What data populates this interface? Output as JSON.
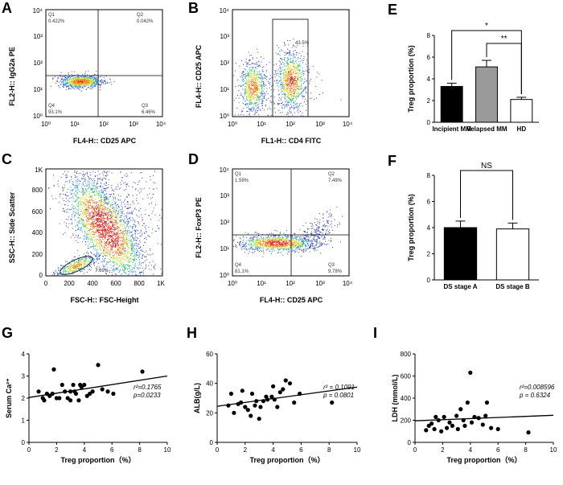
{
  "figure": {
    "panel_labels": [
      "A",
      "B",
      "C",
      "D",
      "E",
      "F",
      "G",
      "H",
      "I"
    ]
  },
  "flow": {
    "A": {
      "xlabel": "FL4-H:: CD25 APC",
      "ylabel": "FL2-H:: IgG2a PE",
      "ticks": [
        "10⁰",
        "10¹",
        "10²",
        "10³",
        "10⁴"
      ],
      "q1": "Q1",
      "q1v": "0.422%",
      "q2": "Q2",
      "q2v": "0.042%",
      "q3": "Q3",
      "q3v": "6.46%",
      "q4": "Q4",
      "q4v": "93.1%"
    },
    "B": {
      "xlabel": "FL1-H:: CD4 FITC",
      "ylabel": "FL4-H:: CD25 APC",
      "ticks": [
        "10⁰",
        "10¹",
        "10²",
        "10³",
        "10⁴"
      ],
      "gate": "43.5%"
    },
    "C": {
      "xlabel": "FSC-H:: FSC-Height",
      "ylabel": "SSC-H:: Side Scatter",
      "ticks": [
        "0",
        "200",
        "400",
        "600",
        "800",
        "1K"
      ],
      "gate": "7.69%"
    },
    "D": {
      "xlabel": "FL4-H:: CD25 APC",
      "ylabel": "FL2-H:: FoxP3 PE",
      "ticks": [
        "10⁰",
        "10¹",
        "10²",
        "10³",
        "10⁴"
      ],
      "q1": "Q1",
      "q1v": "1.59%",
      "q2": "Q2",
      "q2v": "7.49%",
      "q3": "Q3",
      "q3v": "9.78%",
      "q4": "Q4",
      "q4v": "81.1%"
    }
  },
  "chart_data": [
    {
      "id": "E",
      "type": "bar",
      "categories": [
        "Incipient MM",
        "Relapsed MM",
        "HD"
      ],
      "values": [
        3.3,
        5.1,
        2.1
      ],
      "errors": [
        0.3,
        0.6,
        0.2
      ],
      "colors": [
        "#000000",
        "#9a9a9a",
        "#ffffff"
      ],
      "ylabel": "Treg proportion (%)",
      "ylim": [
        0,
        8
      ],
      "yticks": [
        0,
        2,
        4,
        6,
        8
      ],
      "sig": [
        {
          "from": 0,
          "to": 2,
          "label": "*"
        },
        {
          "from": 1,
          "to": 2,
          "label": "**"
        }
      ]
    },
    {
      "id": "F",
      "type": "bar",
      "categories": [
        "DS stage A",
        "DS stage B"
      ],
      "values": [
        4.0,
        3.9
      ],
      "errors": [
        0.5,
        0.45
      ],
      "colors": [
        "#000000",
        "#ffffff"
      ],
      "ylabel": "Treg proportion (%)",
      "ylim": [
        0,
        8
      ],
      "yticks": [
        0,
        2,
        4,
        6,
        8
      ],
      "sig": [
        {
          "from": 0,
          "to": 1,
          "label": "NS"
        }
      ]
    },
    {
      "id": "G",
      "type": "scatter",
      "xlabel": "Treg proportion（%）",
      "ylabel": "Serum Ca²⁺",
      "xlim": [
        0,
        10
      ],
      "ylim": [
        0,
        4
      ],
      "xticks": [
        0,
        2,
        4,
        6,
        8,
        10
      ],
      "yticks": [
        0,
        1,
        2,
        3,
        4
      ],
      "r2": "r²=0.1765",
      "p": "p=0.0233",
      "fit": [
        [
          0,
          2.03
        ],
        [
          10,
          3.0
        ]
      ],
      "points": [
        [
          0.7,
          2.3
        ],
        [
          1.0,
          2.0
        ],
        [
          1.1,
          1.9
        ],
        [
          1.3,
          2.2
        ],
        [
          1.5,
          2.1
        ],
        [
          1.7,
          2.2
        ],
        [
          1.8,
          3.3
        ],
        [
          2.0,
          2.0
        ],
        [
          2.2,
          2.0
        ],
        [
          2.4,
          2.6
        ],
        [
          2.6,
          2.3
        ],
        [
          2.8,
          2.0
        ],
        [
          3.0,
          2.3
        ],
        [
          3.0,
          1.9
        ],
        [
          3.2,
          2.6
        ],
        [
          3.3,
          2.3
        ],
        [
          3.4,
          2.2
        ],
        [
          3.6,
          1.9
        ],
        [
          3.7,
          2.6
        ],
        [
          3.8,
          2.5
        ],
        [
          4.0,
          2.6
        ],
        [
          4.2,
          2.1
        ],
        [
          4.4,
          2.2
        ],
        [
          4.6,
          2.3
        ],
        [
          5.0,
          3.5
        ],
        [
          5.3,
          2.4
        ],
        [
          5.7,
          2.3
        ],
        [
          6.1,
          2.2
        ],
        [
          8.2,
          3.2
        ]
      ]
    },
    {
      "id": "H",
      "type": "scatter",
      "xlabel": "Treg proportion（%）",
      "ylabel": "ALB(g/L)",
      "xlim": [
        0,
        10
      ],
      "ylim": [
        0,
        60
      ],
      "xticks": [
        0,
        2,
        4,
        6,
        8,
        10
      ],
      "yticks": [
        0,
        20,
        40,
        60
      ],
      "r2": "r² = 0.1091",
      "p": "p = 0.0801",
      "fit": [
        [
          0,
          24.5
        ],
        [
          10,
          37.5
        ]
      ],
      "points": [
        [
          0.8,
          25
        ],
        [
          1.0,
          33
        ],
        [
          1.2,
          20
        ],
        [
          1.5,
          26
        ],
        [
          1.7,
          27
        ],
        [
          1.8,
          35
        ],
        [
          2.0,
          24
        ],
        [
          2.2,
          22
        ],
        [
          2.4,
          18
        ],
        [
          2.5,
          33
        ],
        [
          2.7,
          25
        ],
        [
          2.8,
          28
        ],
        [
          3.0,
          16
        ],
        [
          3.1,
          24
        ],
        [
          3.3,
          28
        ],
        [
          3.5,
          31
        ],
        [
          3.6,
          29
        ],
        [
          3.9,
          31
        ],
        [
          4.0,
          38
        ],
        [
          4.1,
          29
        ],
        [
          4.3,
          24
        ],
        [
          4.5,
          34
        ],
        [
          4.7,
          36
        ],
        [
          4.9,
          42
        ],
        [
          5.2,
          40
        ],
        [
          5.5,
          27
        ],
        [
          5.9,
          33
        ],
        [
          8.2,
          27
        ]
      ]
    },
    {
      "id": "I",
      "type": "scatter",
      "xlabel": "Treg proportion（%）",
      "ylabel": "LDH (mmol/L)",
      "xlim": [
        0,
        10
      ],
      "ylim": [
        0,
        800
      ],
      "xticks": [
        0,
        2,
        4,
        6,
        8,
        10
      ],
      "yticks": [
        0,
        200,
        400,
        600,
        800
      ],
      "r2": "r²=0.008596",
      "p": "p = 0.6324",
      "fit": [
        [
          0,
          195
        ],
        [
          10,
          245
        ]
      ],
      "points": [
        [
          0.8,
          110
        ],
        [
          1.0,
          150
        ],
        [
          1.2,
          170
        ],
        [
          1.4,
          120
        ],
        [
          1.5,
          230
        ],
        [
          1.7,
          200
        ],
        [
          1.9,
          100
        ],
        [
          2.1,
          230
        ],
        [
          2.3,
          130
        ],
        [
          2.5,
          180
        ],
        [
          2.7,
          150
        ],
        [
          3.0,
          240
        ],
        [
          3.1,
          120
        ],
        [
          3.3,
          300
        ],
        [
          3.5,
          200
        ],
        [
          3.6,
          150
        ],
        [
          3.8,
          360
        ],
        [
          4.0,
          630
        ],
        [
          4.1,
          180
        ],
        [
          4.3,
          230
        ],
        [
          4.6,
          220
        ],
        [
          4.9,
          160
        ],
        [
          5.1,
          240
        ],
        [
          5.2,
          360
        ],
        [
          5.5,
          130
        ],
        [
          6.0,
          120
        ],
        [
          8.2,
          90
        ]
      ]
    }
  ]
}
